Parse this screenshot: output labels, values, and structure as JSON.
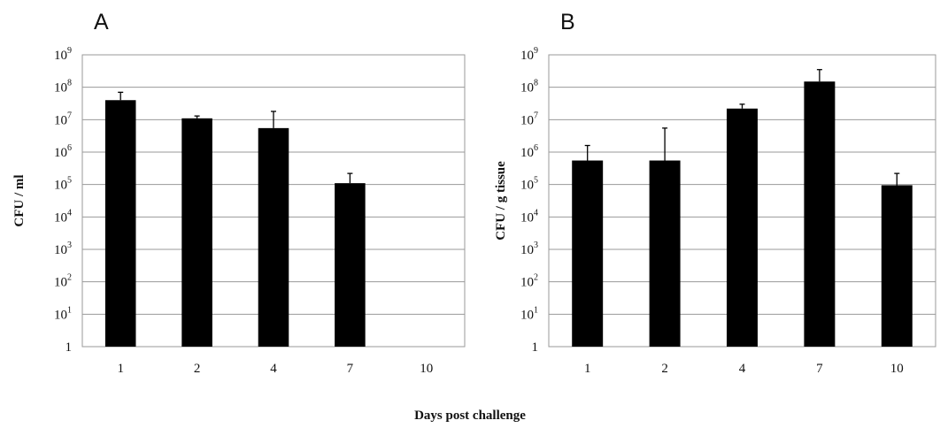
{
  "figure": {
    "xlabel": "Days post challenge"
  },
  "chart_data": [
    {
      "type": "bar",
      "panel": "A",
      "ylabel": "CFU / ml",
      "yscale": "log",
      "ylim": [
        1,
        1000000000
      ],
      "yticks": [
        {
          "base": "1",
          "exp": ""
        },
        {
          "base": "10",
          "exp": "1"
        },
        {
          "base": "10",
          "exp": "2"
        },
        {
          "base": "10",
          "exp": "3"
        },
        {
          "base": "10",
          "exp": "4"
        },
        {
          "base": "10",
          "exp": "5"
        },
        {
          "base": "10",
          "exp": "6"
        },
        {
          "base": "10",
          "exp": "7"
        },
        {
          "base": "10",
          "exp": "8"
        },
        {
          "base": "10",
          "exp": "9"
        }
      ],
      "grid": true,
      "categories": [
        "1",
        "2",
        "4",
        "7",
        "10"
      ],
      "values": [
        40000000,
        11000000,
        5500000,
        110000,
        null
      ],
      "error_upper": [
        70000000,
        13000000,
        18000000,
        220000,
        null
      ]
    },
    {
      "type": "bar",
      "panel": "B",
      "ylabel": "CFU / g tissue",
      "yscale": "log",
      "ylim": [
        1,
        1000000000
      ],
      "yticks": [
        {
          "base": "1",
          "exp": ""
        },
        {
          "base": "10",
          "exp": "1"
        },
        {
          "base": "10",
          "exp": "2"
        },
        {
          "base": "10",
          "exp": "3"
        },
        {
          "base": "10",
          "exp": "4"
        },
        {
          "base": "10",
          "exp": "5"
        },
        {
          "base": "10",
          "exp": "6"
        },
        {
          "base": "10",
          "exp": "7"
        },
        {
          "base": "10",
          "exp": "8"
        },
        {
          "base": "10",
          "exp": "9"
        }
      ],
      "grid": true,
      "categories": [
        "1",
        "2",
        "4",
        "7",
        "10"
      ],
      "values": [
        550000,
        550000,
        22000000,
        150000000,
        95000
      ],
      "error_upper": [
        1600000,
        5500000,
        30000000,
        350000000,
        220000
      ]
    }
  ]
}
